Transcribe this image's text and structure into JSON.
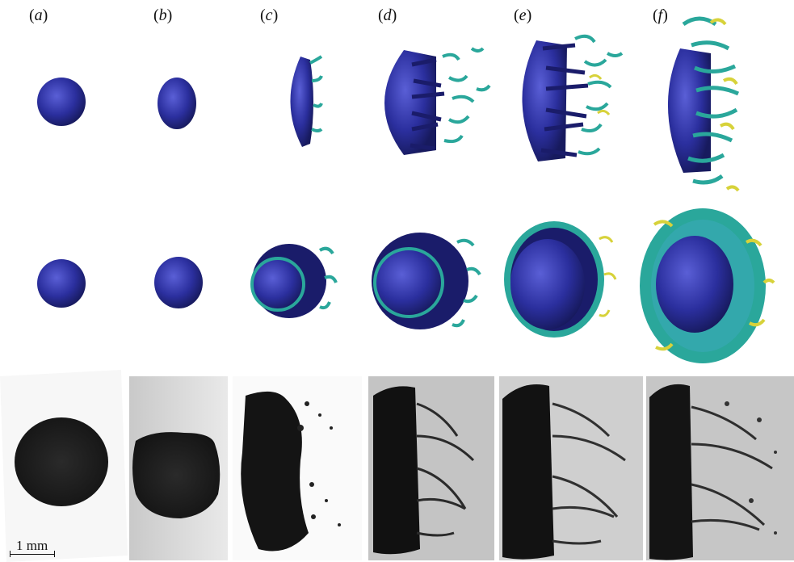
{
  "figure": {
    "panels": [
      {
        "open": "(",
        "letter": "a",
        "close": ")"
      },
      {
        "open": "(",
        "letter": "b",
        "close": ")"
      },
      {
        "open": "(",
        "letter": "c",
        "close": ")"
      },
      {
        "open": "(",
        "letter": "d",
        "close": ")"
      },
      {
        "open": "(",
        "letter": "e",
        "close": ")"
      },
      {
        "open": "(",
        "letter": "f",
        "close": ")"
      }
    ],
    "scale_bar": "1 mm"
  },
  "colors": {
    "droplet_blue": "#2b2f9e",
    "droplet_dark": "#1a1c6a",
    "ligament_teal": "#2aa79b",
    "ligament_yellow": "#d7d23a",
    "photo_dark": "#151515",
    "photo_bg": "#d8d8d8"
  }
}
